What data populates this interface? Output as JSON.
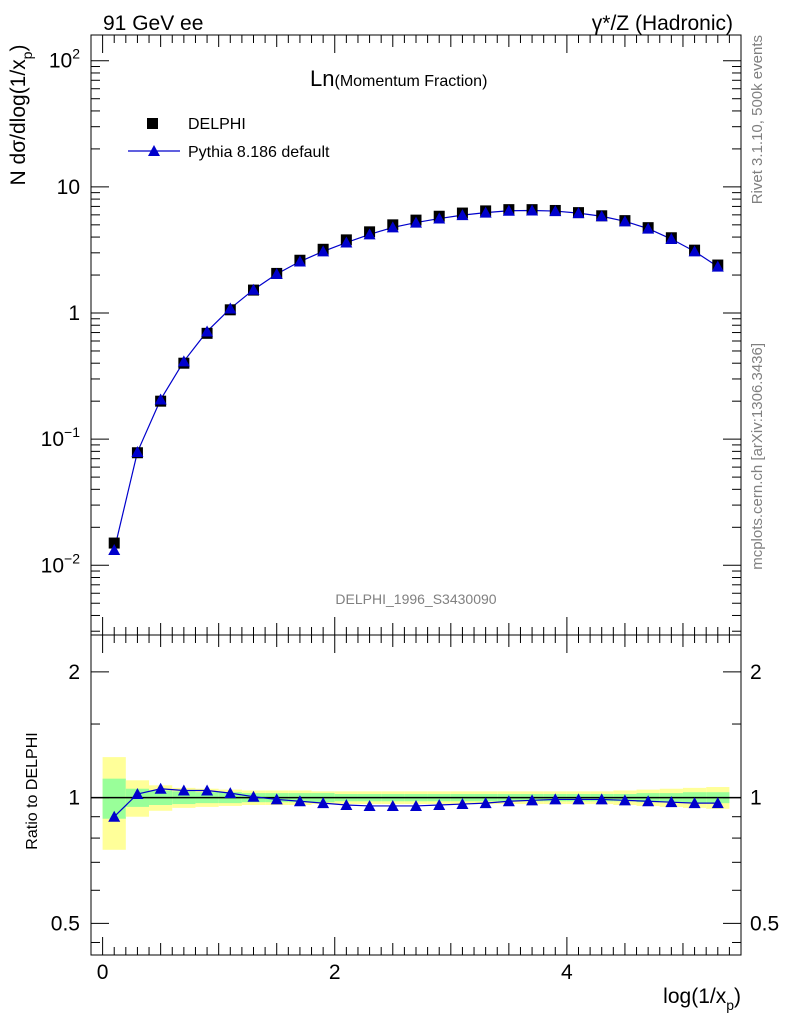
{
  "header": {
    "left_title": "91 GeV ee",
    "right_title": "γ*/Z (Hadronic)",
    "plot_title_main": "Ln",
    "plot_title_sub": "(Momentum Fraction)",
    "analysis_id": "DELPHI_1996_S3430090",
    "side_text_rivet": "Rivet 3.1.10,  500k events",
    "side_text_mcplots": "mcplots.cern.ch [arXiv:1306.3436]"
  },
  "legend": {
    "data_label": "DELPHI",
    "mc_label": "Pythia 8.186 default"
  },
  "axes": {
    "main_ylabel": "N dσ/dlog(1/x",
    "main_ylabel_sub": "p",
    "main_ylabel_close": ")",
    "ratio_ylabel": "Ratio to DELPHI",
    "xlabel": "log(1/x",
    "xlabel_sub": "p",
    "xlabel_close": ")",
    "main_ytick_labels": [
      {
        "base": "10",
        "exp": "−2",
        "value": 0.01
      },
      {
        "base": "10",
        "exp": "−1",
        "value": 0.1
      },
      {
        "base": "1",
        "exp": "",
        "value": 1
      },
      {
        "base": "10",
        "exp": "",
        "value": 10
      },
      {
        "base": "10",
        "exp": "2",
        "value": 100
      }
    ],
    "ratio_ytick_labels": [
      {
        "text": "0.5",
        "value": 0.5
      },
      {
        "text": "1",
        "value": 1
      },
      {
        "text": "2",
        "value": 2
      }
    ],
    "xtick_labels": [
      {
        "text": "0",
        "value": 0
      },
      {
        "text": "2",
        "value": 2
      },
      {
        "text": "4",
        "value": 4
      }
    ]
  },
  "colors": {
    "data_marker": "#000000",
    "mc_line": "#0000cc",
    "band_inner": "#99ff99",
    "band_outer": "#ffff99"
  },
  "chart_data": [
    {
      "type": "scatter",
      "title": "Ln(Momentum Fraction)",
      "xlabel": "log(1/x_p)",
      "ylabel": "N dσ/dlog(1/x_p)",
      "yscale": "log",
      "xlim": [
        -0.1,
        5.5
      ],
      "ylim": [
        0.0028,
        160
      ],
      "series": [
        {
          "name": "DELPHI",
          "marker": "square",
          "x": [
            0.1,
            0.3,
            0.5,
            0.7,
            0.9,
            1.1,
            1.3,
            1.5,
            1.7,
            1.9,
            2.1,
            2.3,
            2.5,
            2.7,
            2.9,
            3.1,
            3.3,
            3.5,
            3.7,
            3.9,
            4.1,
            4.3,
            4.5,
            4.7,
            4.9,
            5.1,
            5.3
          ],
          "y": [
            0.015,
            0.078,
            0.2,
            0.4,
            0.69,
            1.06,
            1.52,
            2.06,
            2.62,
            3.2,
            3.8,
            4.4,
            5.0,
            5.45,
            5.85,
            6.2,
            6.45,
            6.6,
            6.6,
            6.5,
            6.25,
            5.9,
            5.4,
            4.75,
            3.95,
            3.15,
            2.4
          ]
        },
        {
          "name": "Pythia 8.186 default",
          "marker": "triangle",
          "x": [
            0.1,
            0.3,
            0.5,
            0.7,
            0.9,
            1.1,
            1.3,
            1.5,
            1.7,
            1.9,
            2.1,
            2.3,
            2.5,
            2.7,
            2.9,
            3.1,
            3.3,
            3.5,
            3.7,
            3.9,
            4.1,
            4.3,
            4.5,
            4.7,
            4.9,
            5.1,
            5.3
          ],
          "y": [
            0.0132,
            0.079,
            0.206,
            0.414,
            0.714,
            1.085,
            1.53,
            2.04,
            2.56,
            3.08,
            3.62,
            4.2,
            4.77,
            5.21,
            5.61,
            5.97,
            6.25,
            6.47,
            6.5,
            6.43,
            6.19,
            5.85,
            5.33,
            4.67,
            3.86,
            3.08,
            2.33
          ]
        }
      ]
    },
    {
      "type": "line",
      "title": "Ratio to DELPHI",
      "xlabel": "log(1/x_p)",
      "ylabel": "Ratio to DELPHI",
      "yscale": "log",
      "xlim": [
        -0.1,
        5.5
      ],
      "ylim": [
        0.42,
        2.45
      ],
      "reference_line": 1,
      "bands": {
        "x_edges": [
          0.0,
          0.2,
          0.4,
          0.6,
          0.8,
          1.0,
          1.2,
          1.4,
          1.6,
          1.8,
          2.0,
          2.2,
          2.4,
          2.6,
          2.8,
          3.0,
          3.2,
          3.4,
          3.6,
          3.8,
          4.0,
          4.2,
          4.4,
          4.6,
          4.8,
          5.0,
          5.2,
          5.4
        ],
        "inner_half_width": [
          0.11,
          0.05,
          0.04,
          0.035,
          0.03,
          0.03,
          0.025,
          0.025,
          0.025,
          0.025,
          0.02,
          0.02,
          0.02,
          0.02,
          0.02,
          0.02,
          0.02,
          0.02,
          0.02,
          0.02,
          0.02,
          0.02,
          0.02,
          0.025,
          0.025,
          0.03,
          0.03
        ],
        "outer_half_width": [
          0.25,
          0.1,
          0.07,
          0.055,
          0.05,
          0.045,
          0.04,
          0.04,
          0.04,
          0.035,
          0.035,
          0.035,
          0.035,
          0.035,
          0.035,
          0.035,
          0.035,
          0.035,
          0.035,
          0.035,
          0.035,
          0.035,
          0.04,
          0.045,
          0.05,
          0.055,
          0.06
        ]
      },
      "series": [
        {
          "name": "Pythia 8.186 default / DELPHI",
          "marker": "triangle",
          "x": [
            0.1,
            0.3,
            0.5,
            0.7,
            0.9,
            1.1,
            1.3,
            1.5,
            1.7,
            1.9,
            2.1,
            2.3,
            2.5,
            2.7,
            2.9,
            3.1,
            3.3,
            3.5,
            3.7,
            3.9,
            4.1,
            4.3,
            4.5,
            4.7,
            4.9,
            5.1,
            5.3
          ],
          "y": [
            0.9,
            1.02,
            1.05,
            1.04,
            1.04,
            1.025,
            1.005,
            0.99,
            0.98,
            0.97,
            0.96,
            0.955,
            0.955,
            0.955,
            0.96,
            0.965,
            0.97,
            0.98,
            0.985,
            0.99,
            0.99,
            0.99,
            0.985,
            0.98,
            0.975,
            0.97,
            0.97
          ]
        }
      ]
    }
  ]
}
